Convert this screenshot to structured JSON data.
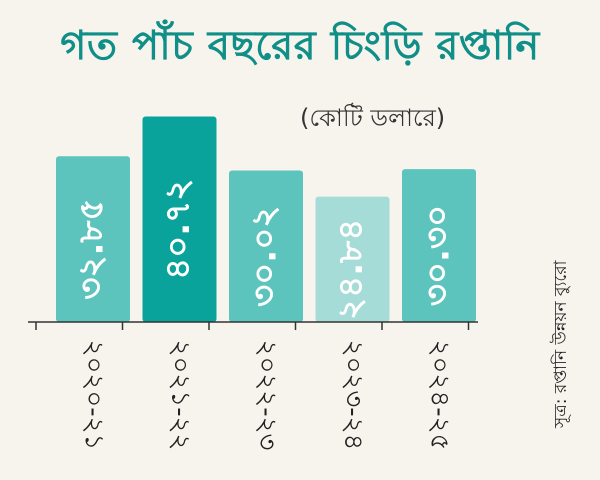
{
  "title": "গত পাঁচ বছরের চিংড়ি রপ্তানি",
  "unit_label": "(কোটি ডলারে)",
  "source": "সূত্র: রপ্তানি উন্নয়ন ব্যুরো",
  "colors": {
    "title": "#0f8f87",
    "bars": [
      "#5cc4bd",
      "#0aa39b",
      "#5cc4bd",
      "#a5dcd8",
      "#5cc4bd"
    ],
    "label_text": "#ffffff",
    "axis": "#333333"
  },
  "chart_data": {
    "type": "bar",
    "categories": [
      "২০২০-২১",
      "২০২১-২২",
      "২০২২-২৩",
      "২০২৩-২৪",
      "২০২৪-২৫"
    ],
    "values": [
      32.85,
      40.72,
      30.02,
      24.84,
      30.3
    ],
    "value_labels": [
      "৩২.৮৫",
      "৪০.৭২",
      "৩০.০২",
      "২৪.৮৪",
      "৩০.৩০"
    ],
    "title": "গত পাঁচ বছরের চিংড়ি রপ্তানি",
    "ylabel": "(কোটি ডলারে)",
    "ylim": [
      0,
      44
    ],
    "grid": false,
    "orientation": "vertical"
  }
}
